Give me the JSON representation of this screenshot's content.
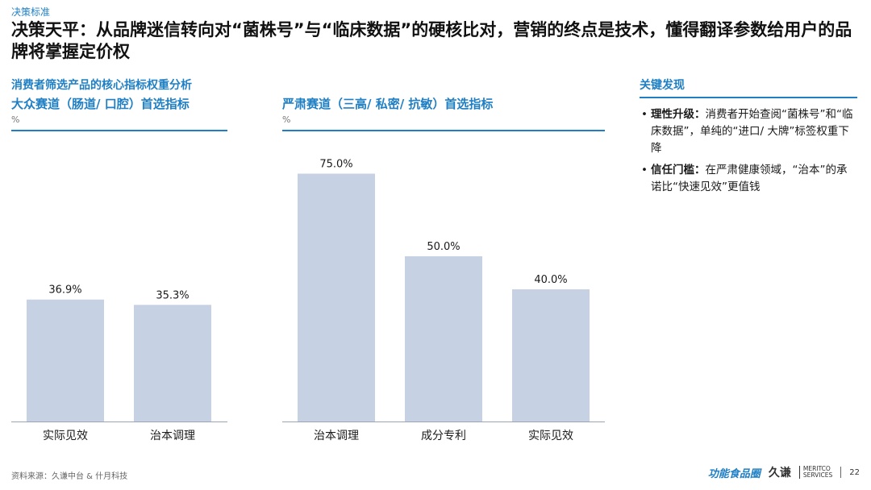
{
  "header": {
    "kicker": "决策标准",
    "headline": "决策天平：从品牌迷信转向对“菌株号”与“临床数据”的硬核比对，营销的终点是技术，懂得翻译参数给用户的品牌将掌握定价权"
  },
  "section_title": "消费者筛选产品的核心指标权重分析",
  "chart_data": [
    {
      "type": "bar",
      "title": "大众赛道（肠道/ 口腔）首选指标",
      "unit": "%",
      "categories": [
        "实际见效",
        "治本调理"
      ],
      "values": [
        36.9,
        35.3
      ],
      "value_labels": [
        "36.9%",
        "35.3%"
      ],
      "ylim": [
        0,
        100
      ],
      "bar_color": "#c6d1e3"
    },
    {
      "type": "bar",
      "title": "严肃赛道（三高/ 私密/ 抗敏）首选指标",
      "unit": "%",
      "categories": [
        "治本调理",
        "成分专利",
        "实际见效"
      ],
      "values": [
        75.0,
        50.0,
        40.0
      ],
      "value_labels": [
        "75.0%",
        "50.0%",
        "40.0%"
      ],
      "ylim": [
        0,
        100
      ],
      "bar_color": "#c6d1e3"
    }
  ],
  "findings": {
    "title": "关键发现",
    "items": [
      {
        "lead": "理性升级：",
        "text": "消费者开始查阅“菌株号”和“临床数据”，单纯的“进口/ 大牌”标签权重下降"
      },
      {
        "lead": "信任门槛：",
        "text": "在严肃健康领域，“治本”的承诺比“快速见效”更值钱"
      }
    ]
  },
  "footer": {
    "source": "资料来源：久谦中台 & 什月科技",
    "brand_left": "功能食品圈",
    "brand_mid": "久谦",
    "brand_right_line1": "MERITCO",
    "brand_right_line2": "SERVICES",
    "page_number": "22"
  },
  "colors": {
    "accent": "#1f7fc4",
    "bar": "#c6d1e3"
  }
}
